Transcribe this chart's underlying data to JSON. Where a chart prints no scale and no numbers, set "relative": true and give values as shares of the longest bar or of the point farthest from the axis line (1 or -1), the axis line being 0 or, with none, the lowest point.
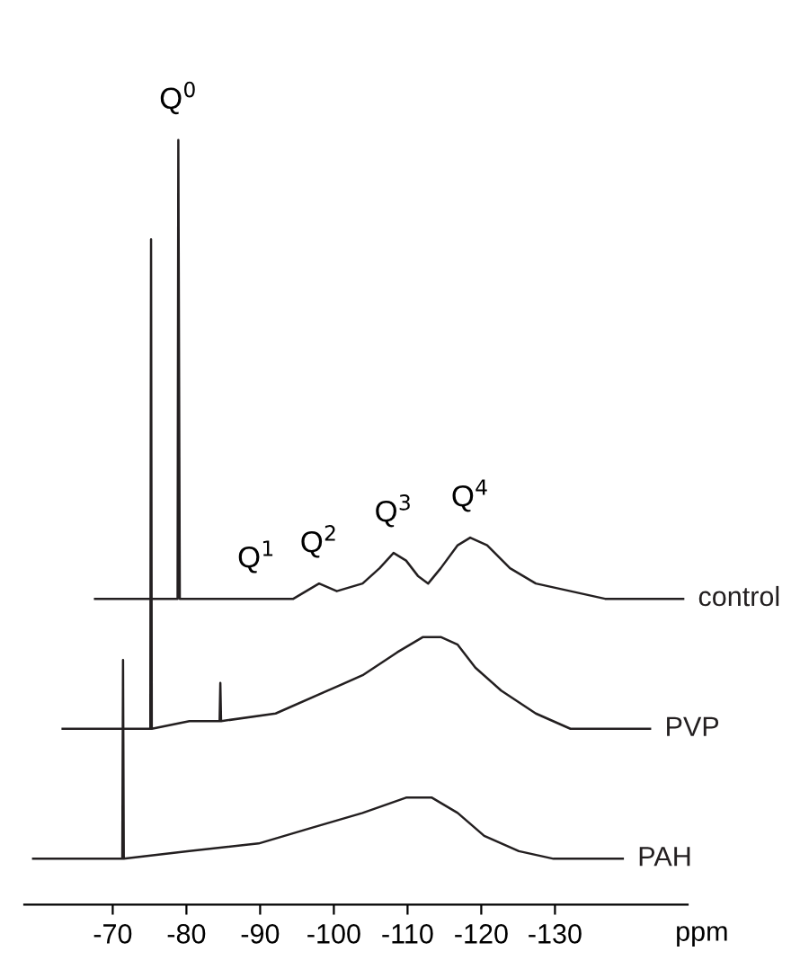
{
  "chart_data": {
    "type": "line",
    "relative": true,
    "xlabel": "ppm",
    "xlim": [
      -58,
      -148
    ],
    "xticks": [
      -70,
      -80,
      -90,
      -100,
      -110,
      -120,
      -130
    ],
    "tick_labels": "x",
    "grid": false,
    "legend": false,
    "marker": "none",
    "line_style": "solid",
    "series": [
      {
        "name": "control",
        "color": "#231f20",
        "x": [
          -67.6,
          -75.6,
          -78.8,
          -78.9,
          -79.1,
          -87.4,
          -94.5,
          -98.0,
          -100.4,
          -103.9,
          -106.2,
          -108.1,
          -109.8,
          -111.4,
          -112.8,
          -114.5,
          -116.8,
          -118.5,
          -120.8,
          -123.9,
          -127.4,
          -132.1,
          -136.8,
          -147.4
        ],
        "values": [
          0.4,
          0.4,
          0.4,
          1.0,
          0.4,
          0.4,
          0.4,
          0.42,
          0.41,
          0.42,
          0.44,
          0.46,
          0.45,
          0.43,
          0.42,
          0.44,
          0.47,
          0.48,
          0.47,
          0.44,
          0.42,
          0.41,
          0.4,
          0.4
        ]
      },
      {
        "name": "PVP",
        "color": "#231f20",
        "x": [
          -63.2,
          -70.9,
          -75.1,
          -75.2,
          -75.3,
          -80.4,
          -84.5,
          -84.6,
          -84.7,
          -92.1,
          -99.2,
          -103.9,
          -108.6,
          -112.1,
          -114.5,
          -116.8,
          -119.2,
          -122.7,
          -127.4,
          -132.1,
          -136.8,
          -142.9
        ],
        "values": [
          0.23,
          0.23,
          0.23,
          0.87,
          0.23,
          0.24,
          0.24,
          0.29,
          0.24,
          0.25,
          0.28,
          0.3,
          0.33,
          0.35,
          0.35,
          0.34,
          0.31,
          0.28,
          0.25,
          0.23,
          0.23,
          0.23
        ]
      },
      {
        "name": "PAH",
        "color": "#231f20",
        "x": [
          -59.2,
          -66.2,
          -71.3,
          -71.4,
          -71.5,
          -80.4,
          -89.8,
          -96.8,
          -103.9,
          -109.8,
          -113.3,
          -116.8,
          -120.4,
          -125.1,
          -129.8,
          -139.2
        ],
        "values": [
          0.06,
          0.06,
          0.06,
          0.32,
          0.06,
          0.07,
          0.08,
          0.1,
          0.12,
          0.14,
          0.14,
          0.12,
          0.09,
          0.07,
          0.06,
          0.06
        ]
      }
    ],
    "annotations": [
      {
        "text": "Q$^{0}$",
        "x": -78.9,
        "y": 1.0
      },
      {
        "text": "Q$^{1}$",
        "x": -89.5,
        "y": 0.4
      },
      {
        "text": "Q$^{2}$",
        "x": -98.0,
        "y": 0.42
      },
      {
        "text": "Q$^{3}$",
        "x": -108.1,
        "y": 0.46
      },
      {
        "text": "Q$^{4}$",
        "x": -118.5,
        "y": 0.48
      }
    ]
  }
}
